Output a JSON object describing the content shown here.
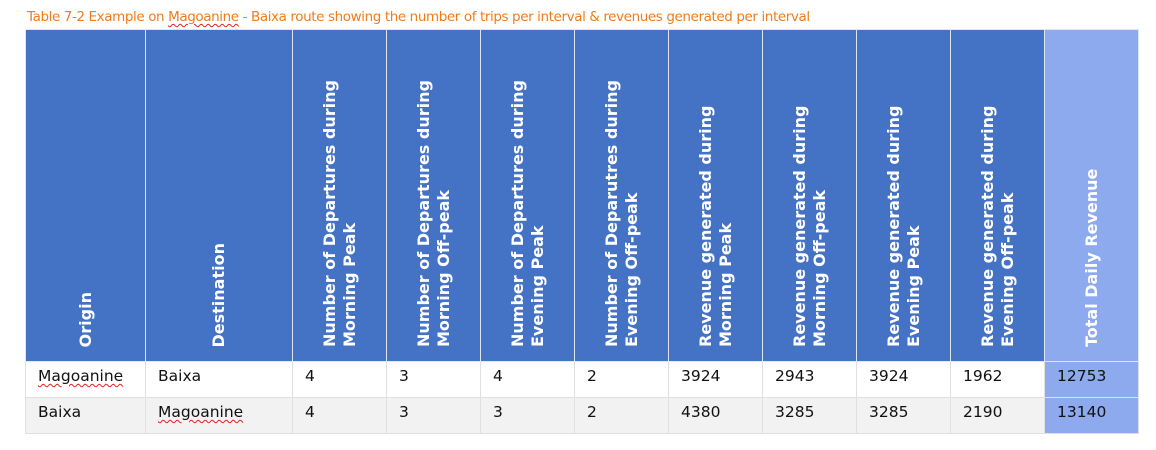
{
  "caption": {
    "prefix": "Table 7-2 Example on ",
    "name": "Magoanine",
    "suffix": " - Baixa route showing the number of trips per interval & revenues generated per interval"
  },
  "colors": {
    "header": "#4472c4",
    "total_header": "#8eaaef",
    "caption": "#f07c1a"
  },
  "headers": [
    "Origin",
    "Destination",
    "Number of Departures during Morning Peak",
    "Number of Departures during Morning Off-peak",
    "Number of Departures during Evening Peak",
    "Number of Deparutres during Evening Off-peak",
    "Revenue generated during Morning Peak",
    "Revenue generated during Morning Off-peak",
    "Revenue generated during Evening Peak",
    "Revenue generated during Evening Off-peak",
    "Total Daily Revenue"
  ],
  "rows": [
    [
      "Magoanine",
      "Baixa",
      "4",
      "3",
      "4",
      "2",
      "3924",
      "2943",
      "3924",
      "1962",
      "12753"
    ],
    [
      "Baixa",
      "Magoanine",
      "4",
      "3",
      "3",
      "2",
      "4380",
      "3285",
      "3285",
      "2190",
      "13140"
    ]
  ]
}
